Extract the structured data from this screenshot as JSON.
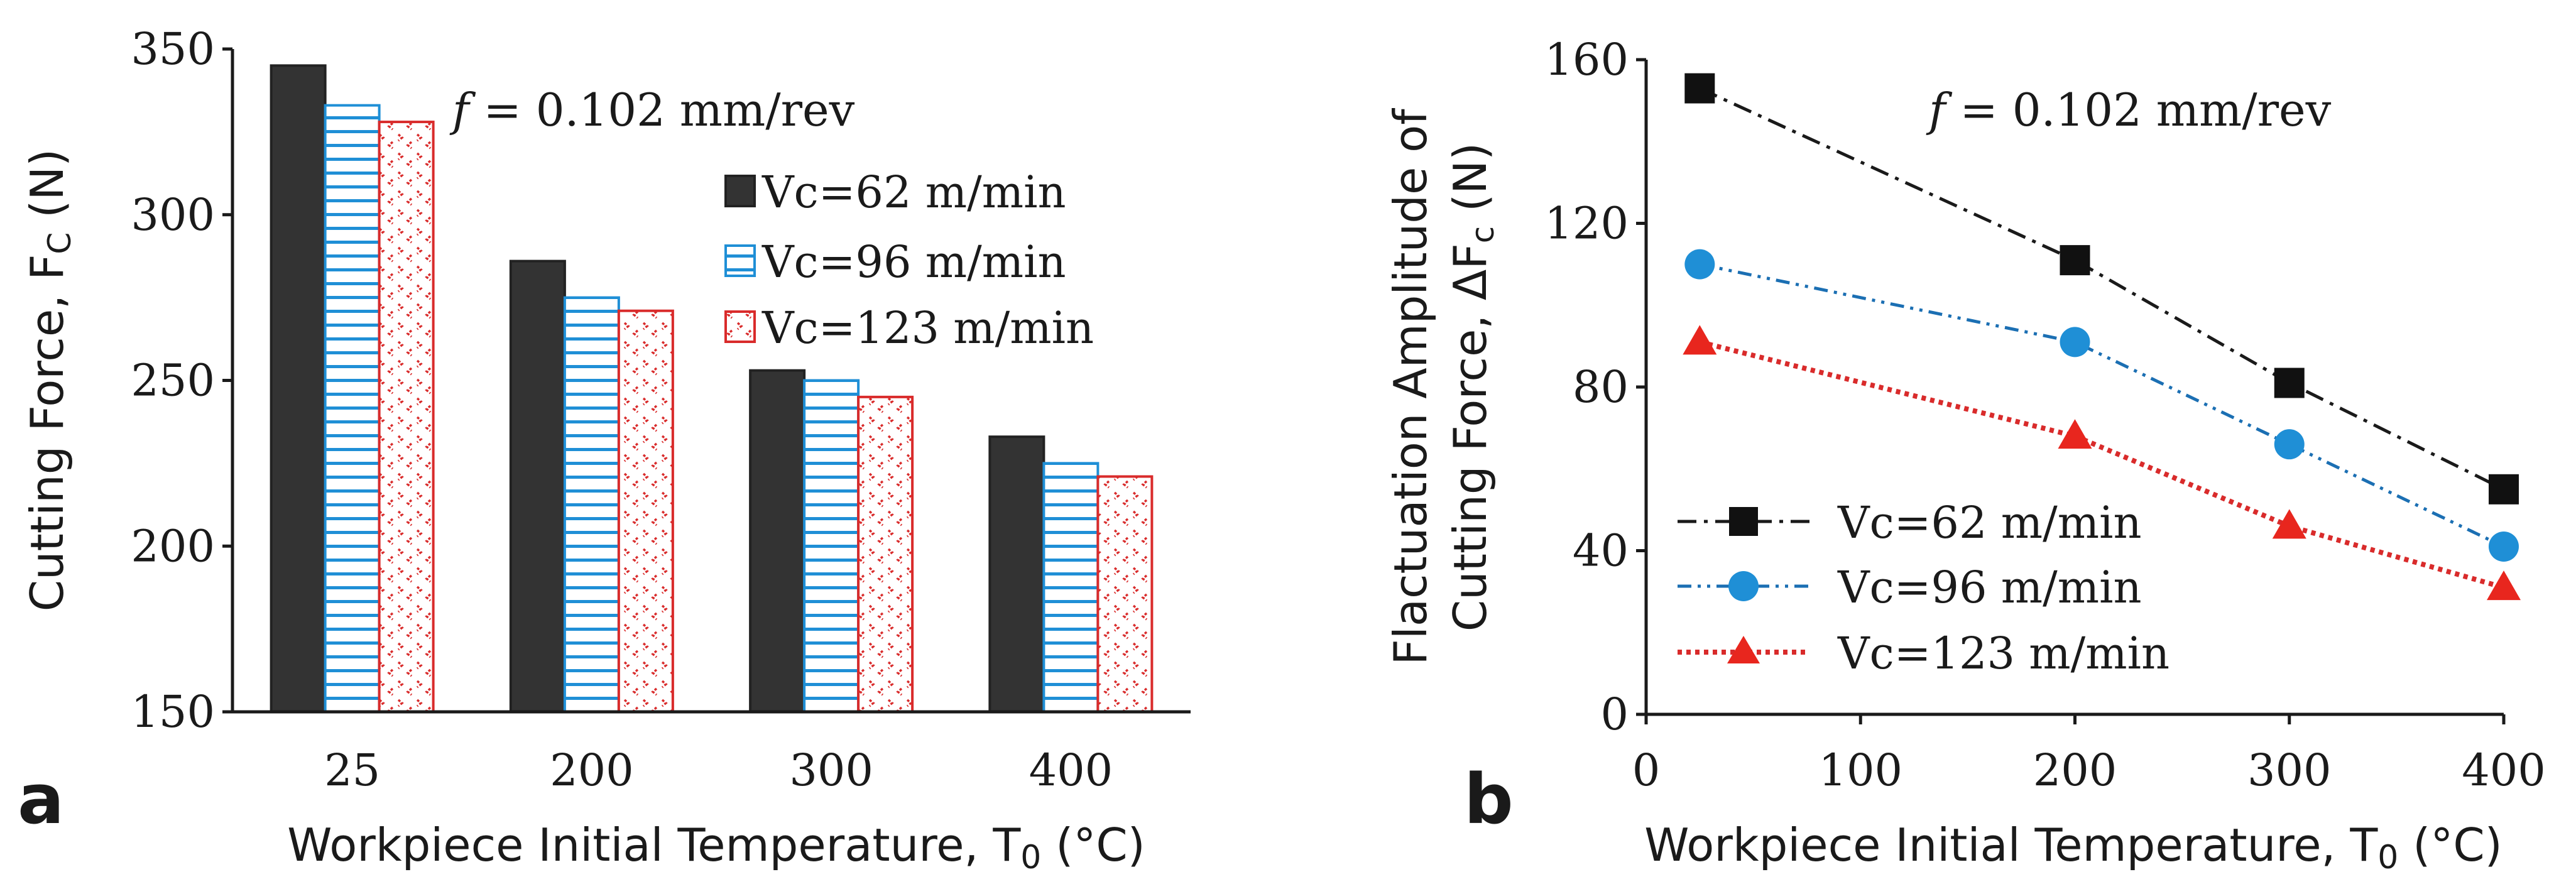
{
  "panel_labels": {
    "a": "a",
    "b": "b"
  },
  "colors": {
    "vc62": "#333333",
    "vc96": "#1f8fd6",
    "vc123": "#d92b2b",
    "vc96_line": "#1b6fb3",
    "vc123_marker": "#e8261e",
    "axis": "#1a1a1a"
  },
  "chart_data": [
    {
      "type": "bar",
      "annotation": {
        "italic": "f",
        "text": " = 0.102 mm/rev"
      },
      "xlabel": {
        "text": "Workpiece Initial Temperature, T",
        "sub": "0",
        "tail": " (°C)"
      },
      "ylabel": {
        "text": "Cutting Force, F",
        "sub": "C",
        "tail": " (N)"
      },
      "categories": [
        "25",
        "200",
        "300",
        "400"
      ],
      "ylim": [
        150,
        350
      ],
      "yticks": [
        "150",
        "200",
        "250",
        "300",
        "350"
      ],
      "grid": false,
      "legend_position": "top-right",
      "series": [
        {
          "name": "Vc=62 m/min",
          "values": [
            345,
            286,
            253,
            233
          ],
          "pattern": "solid",
          "icon": "solid-dark-bar"
        },
        {
          "name": "Vc=96 m/min",
          "values": [
            333,
            275,
            250,
            225
          ],
          "pattern": "horizontal-lines",
          "icon": "blue-striped-bar"
        },
        {
          "name": "Vc=123 m/min",
          "values": [
            328,
            271,
            245,
            221
          ],
          "pattern": "chevron-dots",
          "icon": "red-dotted-bar"
        }
      ]
    },
    {
      "type": "line",
      "annotation": {
        "italic": "f",
        "text": " = 0.102 mm/rev"
      },
      "xlabel": {
        "text": "Workpiece Initial Temperature, T",
        "sub": "0",
        "tail": " (°C)"
      },
      "ylabel": {
        "line1": "Flactuation Amplitude of",
        "line2_text": "Cutting Force, ΔF",
        "line2_sub": "c",
        "line2_tail": " (N)"
      },
      "xlim": [
        0,
        400
      ],
      "xticks": [
        "0",
        "100",
        "200",
        "300",
        "400"
      ],
      "ylim": [
        0,
        160
      ],
      "yticks": [
        "0",
        "40",
        "80",
        "120",
        "160"
      ],
      "grid": false,
      "legend_position": "bottom-left",
      "series": [
        {
          "name": "Vc=62 m/min",
          "x": [
            25,
            200,
            300,
            400
          ],
          "y": [
            153,
            111,
            81,
            55
          ],
          "marker": "square",
          "line": "dash-dot",
          "icon": "square-marker"
        },
        {
          "name": "Vc=96 m/min",
          "x": [
            25,
            200,
            300,
            400
          ],
          "y": [
            110,
            91,
            66,
            41
          ],
          "marker": "circle",
          "line": "dash-dot-dot",
          "icon": "circle-marker"
        },
        {
          "name": "Vc=123 m/min",
          "x": [
            25,
            200,
            300,
            400
          ],
          "y": [
            91,
            68,
            46,
            31
          ],
          "marker": "triangle",
          "line": "dotted",
          "icon": "triangle-marker"
        }
      ]
    }
  ]
}
